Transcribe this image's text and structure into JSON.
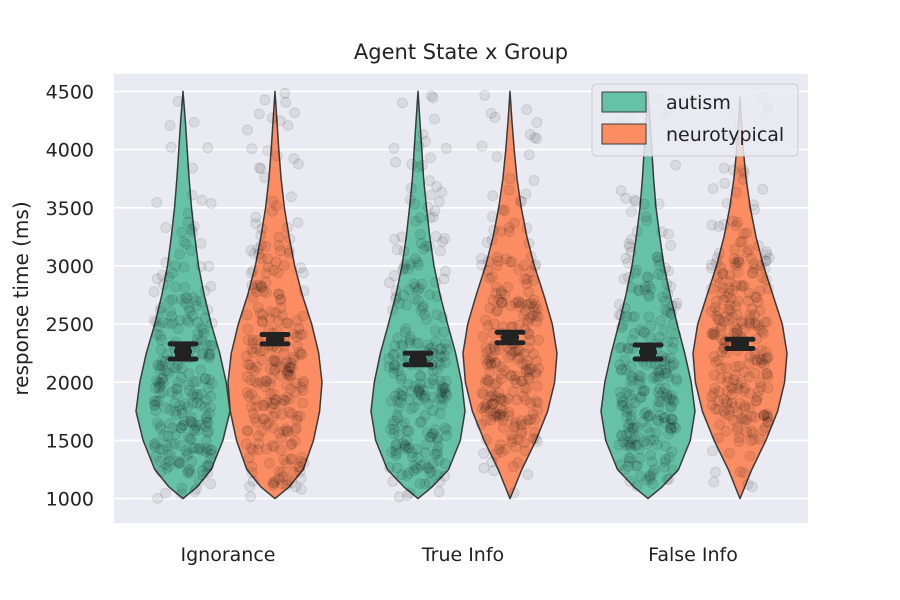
{
  "chart_data": {
    "type": "violin",
    "title": "Agent State x Group",
    "xlabel": "",
    "ylabel": "response time (ms)",
    "ylim": [
      790,
      4650
    ],
    "yticks": [
      1000,
      1500,
      2000,
      2500,
      3000,
      3500,
      4000,
      4500
    ],
    "grid": true,
    "legend_position": "top-right",
    "categories": [
      "Ignorance",
      "True Info",
      "False Info"
    ],
    "series": [
      {
        "name": "autism",
        "color": "#66c2a5",
        "points": [
          {
            "category": "Ignorance",
            "min": 1000,
            "max": 4500,
            "mean": 2265,
            "ci": [
              2200,
              2330
            ],
            "profile": [
              [
                1000,
                0.0
              ],
              [
                1100,
                0.3
              ],
              [
                1250,
                0.6
              ],
              [
                1500,
                0.85
              ],
              [
                1750,
                1.0
              ],
              [
                2000,
                0.92
              ],
              [
                2250,
                0.78
              ],
              [
                2500,
                0.6
              ],
              [
                2750,
                0.45
              ],
              [
                3000,
                0.33
              ],
              [
                3250,
                0.25
              ],
              [
                3500,
                0.18
              ],
              [
                3750,
                0.13
              ],
              [
                4000,
                0.09
              ],
              [
                4250,
                0.05
              ],
              [
                4500,
                0.0
              ]
            ]
          },
          {
            "category": "True Info",
            "min": 1000,
            "max": 4500,
            "mean": 2190,
            "ci": [
              2150,
              2250
            ],
            "profile": [
              [
                1000,
                0.0
              ],
              [
                1100,
                0.3
              ],
              [
                1250,
                0.65
              ],
              [
                1500,
                0.9
              ],
              [
                1750,
                1.0
              ],
              [
                2000,
                0.93
              ],
              [
                2250,
                0.8
              ],
              [
                2500,
                0.63
              ],
              [
                2750,
                0.47
              ],
              [
                3000,
                0.34
              ],
              [
                3250,
                0.25
              ],
              [
                3500,
                0.18
              ],
              [
                3750,
                0.12
              ],
              [
                4000,
                0.08
              ],
              [
                4250,
                0.04
              ],
              [
                4500,
                0.0
              ]
            ]
          },
          {
            "category": "False Info",
            "min": 1000,
            "max": 4500,
            "mean": 2260,
            "ci": [
              2200,
              2320
            ],
            "profile": [
              [
                1000,
                0.0
              ],
              [
                1100,
                0.3
              ],
              [
                1250,
                0.65
              ],
              [
                1500,
                0.9
              ],
              [
                1750,
                1.0
              ],
              [
                2000,
                0.92
              ],
              [
                2250,
                0.78
              ],
              [
                2500,
                0.62
              ],
              [
                2750,
                0.47
              ],
              [
                3000,
                0.34
              ],
              [
                3250,
                0.25
              ],
              [
                3500,
                0.17
              ],
              [
                3750,
                0.12
              ],
              [
                4000,
                0.08
              ],
              [
                4250,
                0.04
              ],
              [
                4500,
                0.0
              ]
            ]
          }
        ]
      },
      {
        "name": "neurotypical",
        "color": "#fc8d62",
        "points": [
          {
            "category": "Ignorance",
            "min": 1000,
            "max": 4500,
            "mean": 2370,
            "ci": [
              2330,
              2410
            ],
            "profile": [
              [
                1000,
                0.0
              ],
              [
                1100,
                0.3
              ],
              [
                1250,
                0.6
              ],
              [
                1500,
                0.82
              ],
              [
                1750,
                0.95
              ],
              [
                2000,
                1.0
              ],
              [
                2250,
                0.93
              ],
              [
                2500,
                0.78
              ],
              [
                2750,
                0.58
              ],
              [
                3000,
                0.42
              ],
              [
                3250,
                0.3
              ],
              [
                3500,
                0.2
              ],
              [
                3750,
                0.13
              ],
              [
                4000,
                0.08
              ],
              [
                4250,
                0.04
              ],
              [
                4500,
                0.0
              ]
            ]
          },
          {
            "category": "True Info",
            "min": 1000,
            "max": 4500,
            "mean": 2385,
            "ci": [
              2340,
              2430
            ],
            "profile": [
              [
                1000,
                0.0
              ],
              [
                1250,
                0.25
              ],
              [
                1500,
                0.55
              ],
              [
                1750,
                0.8
              ],
              [
                2000,
                0.95
              ],
              [
                2250,
                1.0
              ],
              [
                2500,
                0.9
              ],
              [
                2750,
                0.72
              ],
              [
                3000,
                0.52
              ],
              [
                3250,
                0.36
              ],
              [
                3500,
                0.24
              ],
              [
                3750,
                0.15
              ],
              [
                4000,
                0.09
              ],
              [
                4250,
                0.04
              ],
              [
                4500,
                0.0
              ]
            ]
          },
          {
            "category": "False Info",
            "min": 1000,
            "max": 4450,
            "mean": 2330,
            "ci": [
              2290,
              2370
            ],
            "profile": [
              [
                1000,
                0.0
              ],
              [
                1250,
                0.25
              ],
              [
                1500,
                0.55
              ],
              [
                1750,
                0.8
              ],
              [
                2000,
                0.95
              ],
              [
                2250,
                1.0
              ],
              [
                2500,
                0.9
              ],
              [
                2750,
                0.7
              ],
              [
                3000,
                0.5
              ],
              [
                3250,
                0.34
              ],
              [
                3500,
                0.22
              ],
              [
                3750,
                0.13
              ],
              [
                4000,
                0.07
              ],
              [
                4250,
                0.03
              ],
              [
                4450,
                0.0
              ]
            ]
          }
        ]
      }
    ]
  }
}
